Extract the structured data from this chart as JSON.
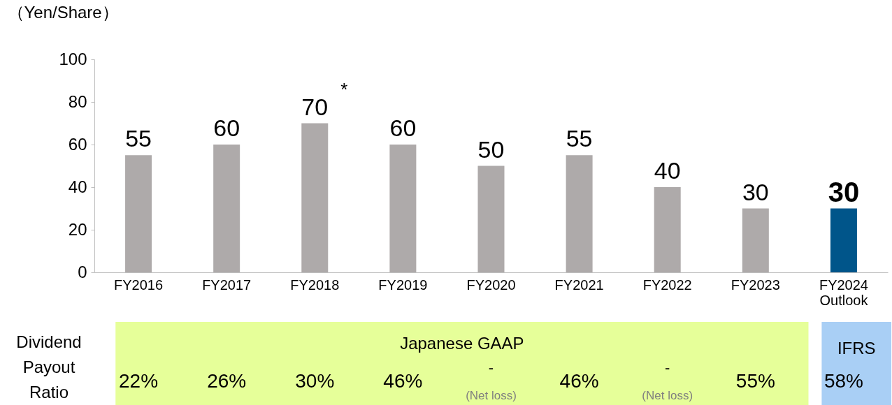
{
  "chart_data": {
    "type": "bar",
    "ylabel": "（Yen/Share）",
    "categories": [
      "FY2016",
      "FY2017",
      "FY2018",
      "FY2019",
      "FY2020",
      "FY2021",
      "FY2022",
      "FY2023",
      "FY2024 Outlook"
    ],
    "values": [
      55,
      60,
      70,
      60,
      50,
      55,
      40,
      30,
      30
    ],
    "colors": [
      "#aeaaaa",
      "#aeaaaa",
      "#aeaaaa",
      "#aeaaaa",
      "#aeaaaa",
      "#aeaaaa",
      "#aeaaaa",
      "#aeaaaa",
      "#00558a"
    ],
    "ylim": [
      0,
      100
    ],
    "yticks": [
      0,
      20,
      40,
      60,
      80,
      100
    ],
    "data_labels": true,
    "grid": false,
    "annotations": [
      {
        "text": "*",
        "x": "FY2018",
        "y": 70
      },
      "Dividend Payout Ratio",
      "Japanese GAAP",
      "IFRS",
      "22%",
      "26%",
      "30%",
      "46%",
      "-",
      "(Net loss)",
      "46%",
      "-",
      "(Net loss)",
      "55%",
      "58%"
    ]
  }
}
